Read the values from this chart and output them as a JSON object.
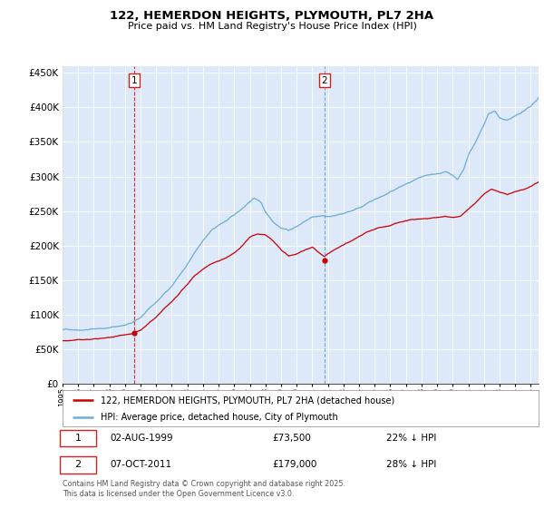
{
  "title": "122, HEMERDON HEIGHTS, PLYMOUTH, PL7 2HA",
  "subtitle": "Price paid vs. HM Land Registry's House Price Index (HPI)",
  "legend_line1": "122, HEMERDON HEIGHTS, PLYMOUTH, PL7 2HA (detached house)",
  "legend_line2": "HPI: Average price, detached house, City of Plymouth",
  "footer": "Contains HM Land Registry data © Crown copyright and database right 2025.\nThis data is licensed under the Open Government Licence v3.0.",
  "marker1_date": "02-AUG-1999",
  "marker1_price": "£73,500",
  "marker1_hpi": "22% ↓ HPI",
  "marker1_year": 1999.58,
  "marker1_value": 73500,
  "marker2_date": "07-OCT-2011",
  "marker2_price": "£179,000",
  "marker2_hpi": "28% ↓ HPI",
  "marker2_year": 2011.77,
  "marker2_value": 179000,
  "red_color": "#cc0000",
  "blue_color": "#6baed6",
  "background_color": "#dde8f8",
  "ylim_min": 0,
  "ylim_max": 460000,
  "xlim_min": 1995.0,
  "xlim_max": 2025.5
}
